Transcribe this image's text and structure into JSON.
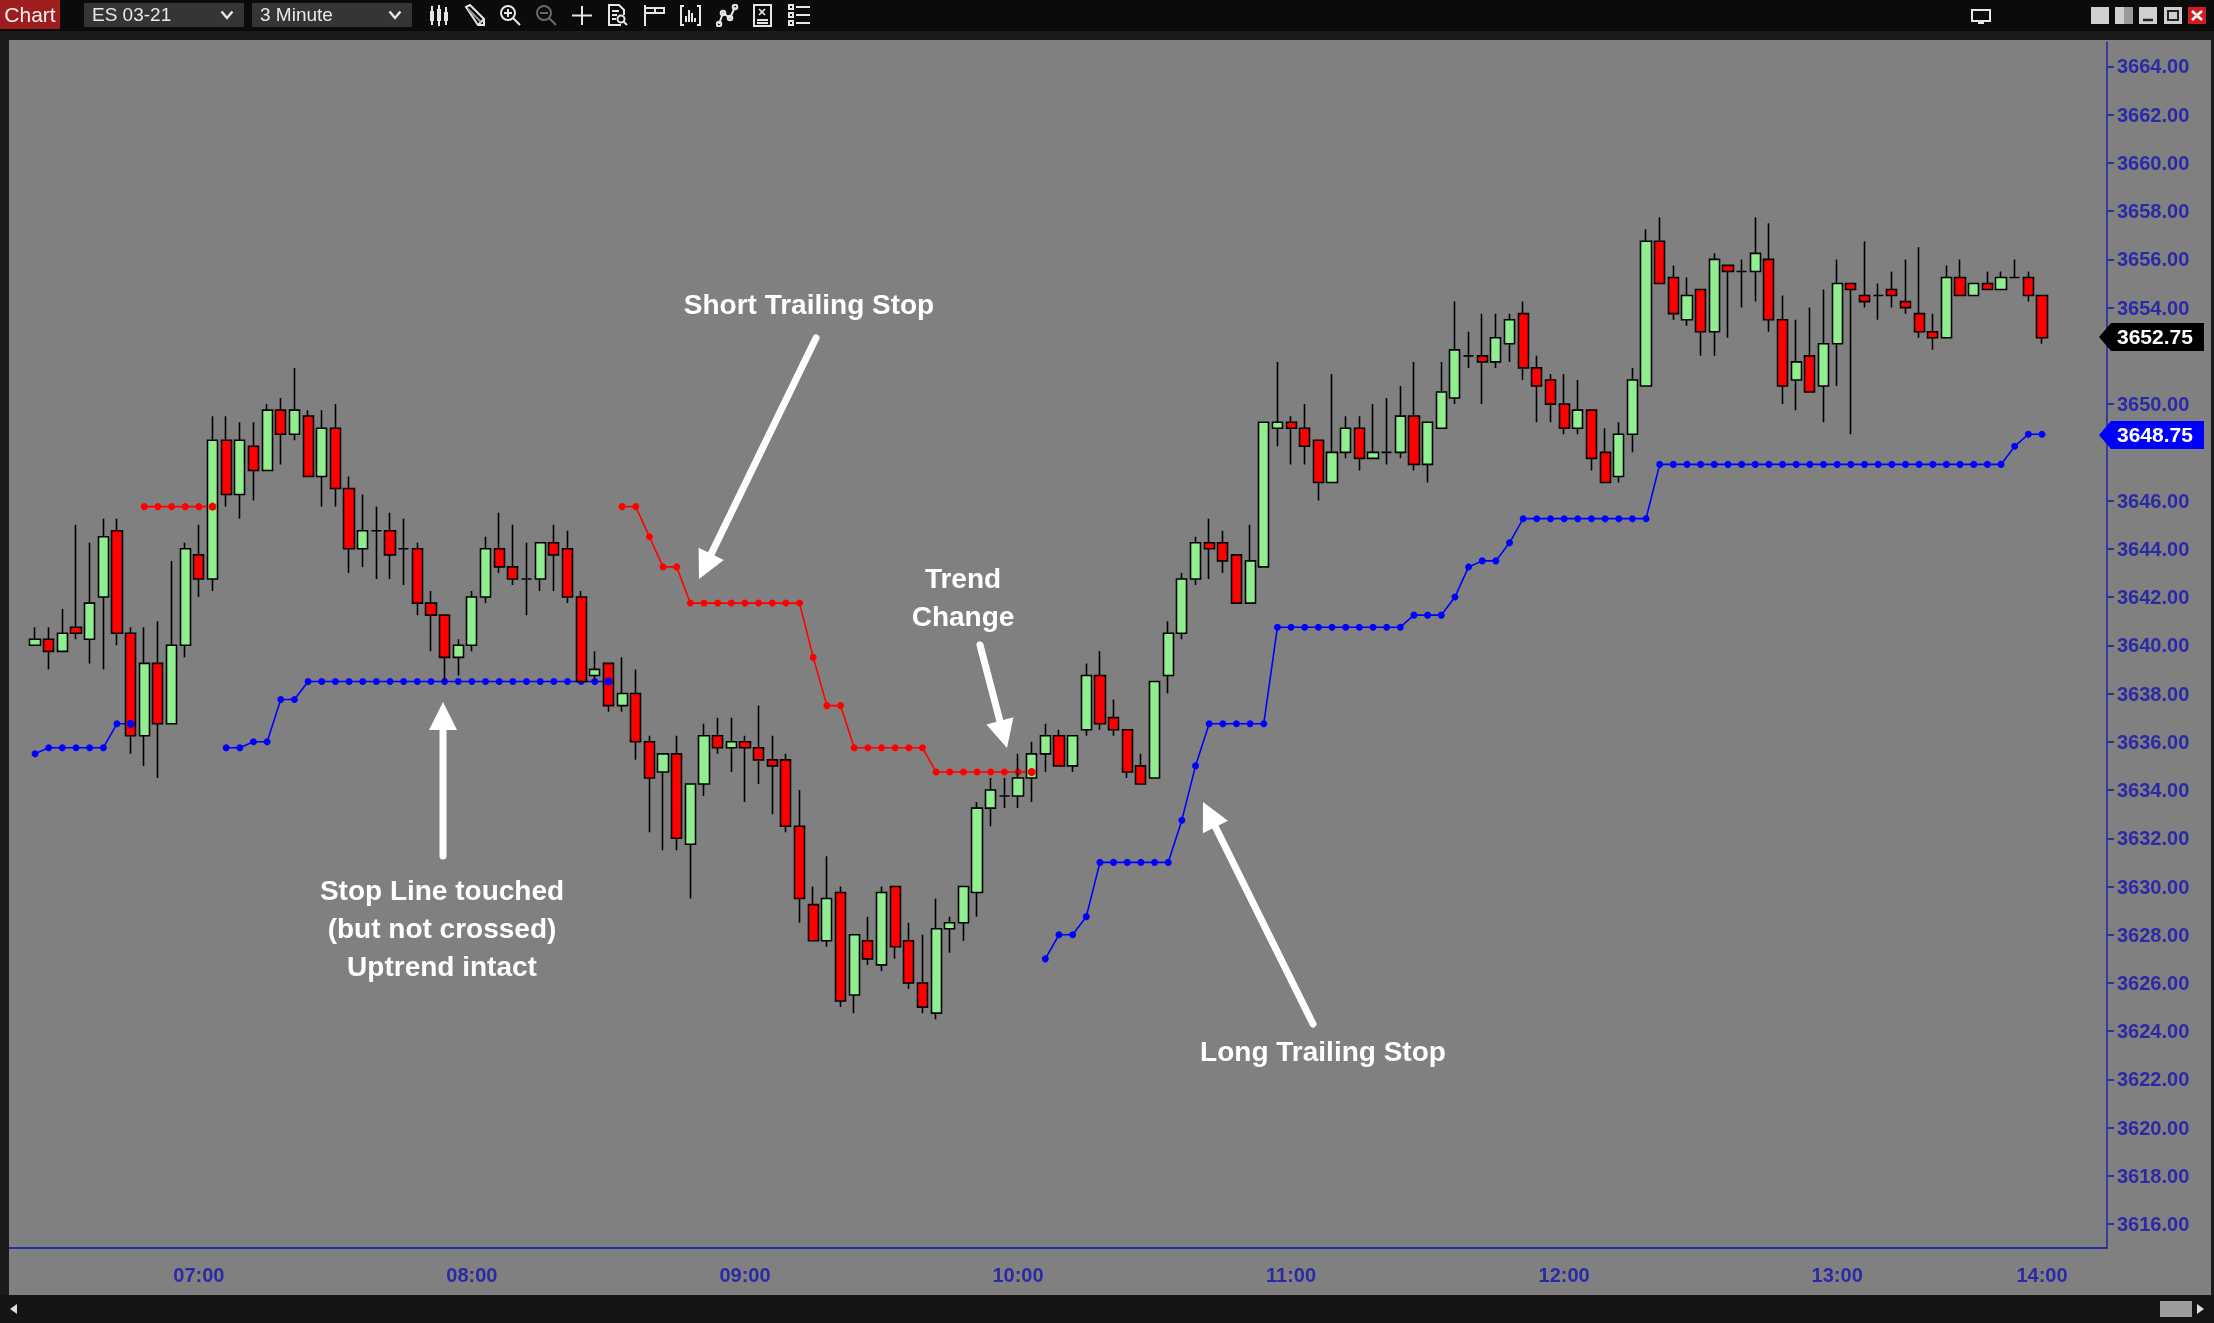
{
  "chart_data": {
    "type": "candlestick",
    "title": "ES 03-21",
    "subtitle": "3 Minute",
    "categories": [
      null,
      null,
      null,
      null,
      null,
      null,
      null,
      null,
      null,
      null,
      null,
      null,
      "07:00",
      null,
      null,
      null,
      null,
      null,
      null,
      null,
      null,
      null,
      null,
      null,
      null,
      null,
      null,
      null,
      null,
      null,
      null,
      null,
      "08:00",
      null,
      null,
      null,
      null,
      null,
      null,
      null,
      null,
      null,
      null,
      null,
      null,
      null,
      null,
      null,
      null,
      null,
      null,
      null,
      "09:00",
      null,
      null,
      null,
      null,
      null,
      null,
      null,
      null,
      null,
      null,
      null,
      null,
      null,
      null,
      null,
      null,
      null,
      null,
      null,
      "10:00",
      null,
      null,
      null,
      null,
      null,
      null,
      null,
      null,
      null,
      null,
      null,
      null,
      null,
      null,
      null,
      null,
      null,
      null,
      null,
      "11:00",
      null,
      null,
      null,
      null,
      null,
      null,
      null,
      null,
      null,
      null,
      null,
      null,
      null,
      null,
      null,
      null,
      null,
      null,
      null,
      "12:00",
      null,
      null,
      null,
      null,
      null,
      null,
      null,
      null,
      null,
      null,
      null,
      null,
      null,
      null,
      null,
      null,
      null,
      null,
      null,
      "13:00",
      null,
      null,
      null,
      null,
      null,
      null,
      null,
      null,
      null,
      null,
      null,
      null,
      null,
      null,
      "14:00"
    ],
    "ohlc": [
      [
        3640.0,
        3640.75,
        3640.0,
        3640.25
      ],
      [
        3640.25,
        3640.75,
        3639.0,
        3639.75
      ],
      [
        3639.75,
        3641.5,
        3639.75,
        3640.5
      ],
      [
        3640.75,
        3645.0,
        3640.25,
        3640.5
      ],
      [
        3640.25,
        3644.25,
        3639.25,
        3641.75
      ],
      [
        3642.0,
        3645.25,
        3639.0,
        3644.5
      ],
      [
        3644.75,
        3645.25,
        3640.0,
        3640.5
      ],
      [
        3640.5,
        3640.75,
        3635.5,
        3636.25
      ],
      [
        3636.25,
        3640.75,
        3635.0,
        3639.25
      ],
      [
        3639.25,
        3641.0,
        3634.5,
        3636.75
      ],
      [
        3636.75,
        3643.5,
        3636.75,
        3640.0
      ],
      [
        3640.0,
        3644.25,
        3639.5,
        3644.0
      ],
      [
        3643.75,
        3645.0,
        3642.0,
        3642.75
      ],
      [
        3642.75,
        3649.5,
        3642.25,
        3648.5
      ],
      [
        3648.5,
        3649.5,
        3645.75,
        3646.25
      ],
      [
        3646.25,
        3649.25,
        3645.25,
        3648.5
      ],
      [
        3648.25,
        3649.25,
        3646.0,
        3647.25
      ],
      [
        3647.25,
        3650.0,
        3647.25,
        3649.75
      ],
      [
        3649.75,
        3650.25,
        3647.5,
        3648.75
      ],
      [
        3648.75,
        3651.5,
        3648.5,
        3649.75
      ],
      [
        3649.5,
        3649.75,
        3647.0,
        3647.0
      ],
      [
        3647.0,
        3649.75,
        3645.75,
        3649.0
      ],
      [
        3649.0,
        3650.0,
        3645.75,
        3646.5
      ],
      [
        3646.5,
        3647.0,
        3643.0,
        3644.0
      ],
      [
        3644.0,
        3646.25,
        3643.25,
        3644.75
      ],
      [
        3644.75,
        3645.75,
        3642.75,
        3644.75
      ],
      [
        3644.75,
        3645.5,
        3642.75,
        3643.75
      ],
      [
        3644.0,
        3645.25,
        3642.5,
        3644.0
      ],
      [
        3644.0,
        3644.25,
        3641.25,
        3641.75
      ],
      [
        3641.75,
        3642.25,
        3639.75,
        3641.25
      ],
      [
        3641.25,
        3641.25,
        3638.5,
        3639.5
      ],
      [
        3639.5,
        3640.25,
        3638.75,
        3640.0
      ],
      [
        3640.0,
        3642.25,
        3639.75,
        3642.0
      ],
      [
        3642.0,
        3644.5,
        3641.75,
        3644.0
      ],
      [
        3644.0,
        3645.5,
        3643.0,
        3643.25
      ],
      [
        3643.25,
        3645.0,
        3642.5,
        3642.75
      ],
      [
        3642.75,
        3644.25,
        3641.25,
        3642.75
      ],
      [
        3642.75,
        3644.25,
        3642.25,
        3644.25
      ],
      [
        3644.25,
        3645.0,
        3642.25,
        3643.75
      ],
      [
        3644.0,
        3644.75,
        3641.75,
        3642.0
      ],
      [
        3642.0,
        3642.25,
        3638.5,
        3638.5
      ],
      [
        3638.75,
        3639.75,
        3638.5,
        3639.0
      ],
      [
        3639.25,
        3639.25,
        3637.25,
        3637.5
      ],
      [
        3637.5,
        3639.5,
        3637.25,
        3638.0
      ],
      [
        3638.0,
        3639.0,
        3635.25,
        3636.0
      ],
      [
        3636.0,
        3636.25,
        3632.25,
        3634.5
      ],
      [
        3634.75,
        3635.5,
        3631.5,
        3635.5
      ],
      [
        3635.5,
        3636.25,
        3631.5,
        3632.0
      ],
      [
        3631.75,
        3634.25,
        3629.5,
        3634.25
      ],
      [
        3634.25,
        3636.75,
        3633.75,
        3636.25
      ],
      [
        3636.25,
        3637.0,
        3635.5,
        3635.75
      ],
      [
        3635.75,
        3637.0,
        3634.75,
        3636.0
      ],
      [
        3636.0,
        3636.25,
        3633.5,
        3635.75
      ],
      [
        3635.75,
        3637.5,
        3634.25,
        3635.25
      ],
      [
        3635.25,
        3636.25,
        3633.0,
        3635.0
      ],
      [
        3635.25,
        3635.5,
        3632.25,
        3632.5
      ],
      [
        3632.5,
        3634.0,
        3628.5,
        3629.5
      ],
      [
        3629.25,
        3630.0,
        3627.75,
        3627.75
      ],
      [
        3627.75,
        3631.25,
        3627.5,
        3629.5
      ],
      [
        3629.75,
        3630.0,
        3625.0,
        3625.25
      ],
      [
        3625.5,
        3628.0,
        3624.75,
        3628.0
      ],
      [
        3627.75,
        3628.75,
        3626.75,
        3627.0
      ],
      [
        3626.75,
        3630.0,
        3626.5,
        3629.75
      ],
      [
        3630.0,
        3630.0,
        3627.0,
        3627.5
      ],
      [
        3627.75,
        3628.5,
        3625.75,
        3626.0
      ],
      [
        3626.0,
        3628.0,
        3624.75,
        3625.0
      ],
      [
        3624.75,
        3629.5,
        3624.5,
        3628.25
      ],
      [
        3628.25,
        3628.75,
        3627.25,
        3628.5
      ],
      [
        3628.5,
        3630.0,
        3627.75,
        3630.0
      ],
      [
        3629.75,
        3633.5,
        3628.75,
        3633.25
      ],
      [
        3633.25,
        3634.5,
        3632.5,
        3634.0
      ],
      [
        3633.75,
        3634.5,
        3633.25,
        3633.75
      ],
      [
        3633.75,
        3635.5,
        3633.25,
        3634.5
      ],
      [
        3634.5,
        3636.0,
        3633.5,
        3635.5
      ],
      [
        3635.5,
        3636.75,
        3634.75,
        3636.25
      ],
      [
        3636.25,
        3636.5,
        3635.0,
        3635.0
      ],
      [
        3635.0,
        3636.25,
        3634.75,
        3636.25
      ],
      [
        3636.5,
        3639.25,
        3636.25,
        3638.75
      ],
      [
        3638.75,
        3639.75,
        3636.5,
        3636.75
      ],
      [
        3637.0,
        3637.75,
        3636.25,
        3636.5
      ],
      [
        3636.5,
        3636.5,
        3634.5,
        3634.75
      ],
      [
        3635.0,
        3635.5,
        3634.25,
        3634.25
      ],
      [
        3634.5,
        3638.5,
        3634.5,
        3638.5
      ],
      [
        3638.75,
        3641.0,
        3638.0,
        3640.5
      ],
      [
        3640.5,
        3643.0,
        3640.25,
        3642.75
      ],
      [
        3642.75,
        3644.5,
        3642.5,
        3644.25
      ],
      [
        3644.25,
        3645.25,
        3642.75,
        3644.0
      ],
      [
        3644.25,
        3644.75,
        3643.0,
        3643.5
      ],
      [
        3643.75,
        3643.75,
        3641.75,
        3641.75
      ],
      [
        3641.75,
        3645.0,
        3641.75,
        3643.5
      ],
      [
        3643.25,
        3649.25,
        3643.25,
        3649.25
      ],
      [
        3649.0,
        3651.75,
        3648.25,
        3649.25
      ],
      [
        3649.25,
        3649.5,
        3647.5,
        3649.0
      ],
      [
        3649.0,
        3650.0,
        3647.5,
        3648.25
      ],
      [
        3648.5,
        3648.5,
        3646.0,
        3646.75
      ],
      [
        3646.75,
        3651.25,
        3646.75,
        3648.0
      ],
      [
        3648.0,
        3649.5,
        3647.75,
        3649.0
      ],
      [
        3649.0,
        3649.5,
        3647.25,
        3647.75
      ],
      [
        3647.75,
        3650.0,
        3647.75,
        3648.0
      ],
      [
        3648.0,
        3650.25,
        3647.5,
        3648.0
      ],
      [
        3648.0,
        3650.75,
        3647.75,
        3649.5
      ],
      [
        3649.5,
        3651.75,
        3647.25,
        3647.5
      ],
      [
        3647.5,
        3649.25,
        3646.75,
        3649.25
      ],
      [
        3649.0,
        3651.75,
        3649.0,
        3650.5
      ],
      [
        3650.25,
        3654.25,
        3650.0,
        3652.25
      ],
      [
        3652.0,
        3653.0,
        3651.5,
        3652.0
      ],
      [
        3652.0,
        3653.75,
        3650.0,
        3651.75
      ],
      [
        3651.75,
        3653.75,
        3651.5,
        3652.75
      ],
      [
        3652.5,
        3653.75,
        3651.75,
        3653.5
      ],
      [
        3653.75,
        3654.25,
        3651.0,
        3651.5
      ],
      [
        3651.5,
        3652.0,
        3649.25,
        3650.75
      ],
      [
        3651.0,
        3651.25,
        3649.25,
        3650.0
      ],
      [
        3650.0,
        3651.25,
        3648.75,
        3649.0
      ],
      [
        3649.0,
        3651.0,
        3648.75,
        3649.75
      ],
      [
        3649.75,
        3649.75,
        3647.25,
        3647.75
      ],
      [
        3648.0,
        3649.0,
        3646.75,
        3646.75
      ],
      [
        3647.0,
        3649.25,
        3646.75,
        3648.75
      ],
      [
        3648.75,
        3651.5,
        3648.0,
        3651.0
      ],
      [
        3650.75,
        3657.25,
        3650.75,
        3656.75
      ],
      [
        3656.75,
        3657.75,
        3655.0,
        3655.0
      ],
      [
        3655.25,
        3655.75,
        3653.5,
        3653.75
      ],
      [
        3653.5,
        3655.25,
        3653.25,
        3654.5
      ],
      [
        3654.75,
        3654.75,
        3652.0,
        3653.0
      ],
      [
        3653.0,
        3656.25,
        3652.0,
        3656.0
      ],
      [
        3655.75,
        3655.75,
        3652.75,
        3655.5
      ],
      [
        3655.5,
        3656.0,
        3654.0,
        3655.5
      ],
      [
        3655.5,
        3657.75,
        3654.25,
        3656.25
      ],
      [
        3656.0,
        3657.5,
        3653.0,
        3653.5
      ],
      [
        3653.5,
        3654.5,
        3650.0,
        3650.75
      ],
      [
        3651.0,
        3653.5,
        3649.75,
        3651.75
      ],
      [
        3652.0,
        3654.0,
        3650.5,
        3650.5
      ],
      [
        3650.75,
        3654.75,
        3649.25,
        3652.5
      ],
      [
        3652.5,
        3656.0,
        3650.75,
        3655.0
      ],
      [
        3655.0,
        3655.0,
        3648.75,
        3654.75
      ],
      [
        3654.5,
        3656.75,
        3654.0,
        3654.25
      ],
      [
        3654.5,
        3655.0,
        3653.5,
        3654.5
      ],
      [
        3654.75,
        3655.5,
        3654.0,
        3654.5
      ],
      [
        3654.25,
        3656.0,
        3653.75,
        3654.0
      ],
      [
        3653.75,
        3656.5,
        3652.75,
        3653.0
      ],
      [
        3653.0,
        3653.75,
        3652.25,
        3652.75
      ],
      [
        3652.75,
        3655.75,
        3652.75,
        3655.25
      ],
      [
        3655.25,
        3656.0,
        3654.5,
        3654.5
      ],
      [
        3654.5,
        3655.0,
        3654.5,
        3655.0
      ],
      [
        3655.0,
        3655.5,
        3654.75,
        3654.75
      ],
      [
        3654.75,
        3655.5,
        3654.75,
        3655.25
      ],
      [
        3655.25,
        3656.0,
        3655.25,
        3655.25
      ],
      [
        3655.25,
        3655.5,
        3654.25,
        3654.5
      ],
      [
        3654.5,
        3654.5,
        3652.5,
        3652.75
      ]
    ],
    "colors": [
      "#90ee90",
      "#ff0000",
      "#90ee90",
      "#ff0000",
      "#90ee90",
      "#90ee90",
      "#ff0000",
      "#ff0000",
      "#90ee90",
      "#ff0000",
      "#90ee90",
      "#90ee90",
      "#ff0000",
      "#90ee90",
      "#ff0000",
      "#90ee90",
      "#ff0000",
      "#90ee90",
      "#ff0000",
      "#90ee90",
      "#ff0000",
      "#90ee90",
      "#ff0000",
      "#ff0000",
      "#90ee90",
      "#000000",
      "#ff0000",
      "#000000",
      "#ff0000",
      "#ff0000",
      "#ff0000",
      "#90ee90",
      "#90ee90",
      "#90ee90",
      "#ff0000",
      "#ff0000",
      "#000000",
      "#90ee90",
      "#ff0000",
      "#ff0000",
      "#ff0000",
      "#90ee90",
      "#ff0000",
      "#90ee90",
      "#ff0000",
      "#ff0000",
      "#90ee90",
      "#ff0000",
      "#90ee90",
      "#90ee90",
      "#ff0000",
      "#90ee90",
      "#ff0000",
      "#ff0000",
      "#ff0000",
      "#ff0000",
      "#ff0000",
      "#ff0000",
      "#90ee90",
      "#ff0000",
      "#90ee90",
      "#ff0000",
      "#90ee90",
      "#ff0000",
      "#ff0000",
      "#ff0000",
      "#90ee90",
      "#90ee90",
      "#90ee90",
      "#90ee90",
      "#90ee90",
      "#000000",
      "#90ee90",
      "#90ee90",
      "#90ee90",
      "#ff0000",
      "#90ee90",
      "#90ee90",
      "#ff0000",
      "#ff0000",
      "#ff0000",
      "#ff0000",
      "#90ee90",
      "#90ee90",
      "#90ee90",
      "#90ee90",
      "#ff0000",
      "#ff0000",
      "#ff0000",
      "#90ee90",
      "#90ee90",
      "#90ee90",
      "#ff0000",
      "#ff0000",
      "#ff0000",
      "#90ee90",
      "#90ee90",
      "#ff0000",
      "#90ee90",
      "#000000",
      "#90ee90",
      "#ff0000",
      "#90ee90",
      "#90ee90",
      "#90ee90",
      "#000000",
      "#ff0000",
      "#90ee90",
      "#90ee90",
      "#ff0000",
      "#ff0000",
      "#ff0000",
      "#ff0000",
      "#90ee90",
      "#ff0000",
      "#ff0000",
      "#90ee90",
      "#90ee90",
      "#90ee90",
      "#ff0000",
      "#ff0000",
      "#90ee90",
      "#ff0000",
      "#90ee90",
      "#ff0000",
      "#000000",
      "#90ee90",
      "#ff0000",
      "#ff0000",
      "#90ee90",
      "#ff0000",
      "#90ee90",
      "#90ee90",
      "#ff0000",
      "#ff0000",
      "#000000",
      "#ff0000",
      "#ff0000",
      "#ff0000",
      "#ff0000",
      "#90ee90",
      "#ff0000",
      "#90ee90",
      "#ff0000",
      "#90ee90",
      "#000000",
      "#ff0000",
      "#ff0000"
    ],
    "series": [
      {
        "type": "line",
        "color": "#ff0000",
        "values": [
          null,
          null,
          null,
          null,
          null,
          null,
          null,
          null,
          3645.75,
          3645.75,
          3645.75,
          3645.75,
          3645.75,
          3645.75,
          null,
          null,
          null,
          null,
          null,
          null,
          null,
          null,
          null,
          null,
          null,
          null,
          null,
          null,
          null,
          null,
          null,
          null,
          null,
          null,
          null,
          null,
          null,
          null,
          null,
          null,
          null,
          null,
          null,
          3645.75,
          3645.75,
          3644.5,
          3643.25,
          3643.25,
          3641.75,
          3641.75,
          3641.75,
          3641.75,
          3641.75,
          3641.75,
          3641.75,
          3641.75,
          3641.75,
          3639.5,
          3637.5,
          3637.5,
          3635.75,
          3635.75,
          3635.75,
          3635.75,
          3635.75,
          3635.75,
          3634.75,
          3634.75,
          3634.75,
          3634.75,
          3634.75,
          3634.75,
          3634.75,
          3634.75,
          null,
          null,
          null,
          null,
          null,
          null,
          null,
          null,
          null,
          null,
          null,
          null,
          null,
          null,
          null,
          null,
          null,
          null,
          null,
          null,
          null,
          null,
          null,
          null,
          null,
          null,
          null,
          null,
          null,
          null,
          null,
          null,
          null,
          null,
          null,
          null,
          null,
          null,
          null,
          null,
          null,
          null,
          null,
          null,
          null,
          null,
          null,
          null,
          null,
          null,
          null,
          null,
          null,
          null,
          null,
          null,
          null,
          null,
          null,
          null,
          null,
          null,
          null,
          null,
          null,
          null,
          null,
          null,
          null,
          null,
          null,
          null,
          null,
          null
        ]
      },
      {
        "type": "line",
        "color": "#0000ff",
        "values": [
          3635.5,
          3635.75,
          3635.75,
          3635.75,
          3635.75,
          3635.75,
          3636.75,
          3636.75,
          null,
          null,
          null,
          null,
          null,
          null,
          3635.75,
          3635.75,
          3636.0,
          3636.0,
          3637.75,
          3637.75,
          3638.5,
          3638.5,
          3638.5,
          3638.5,
          3638.5,
          3638.5,
          3638.5,
          3638.5,
          3638.5,
          3638.5,
          3638.5,
          3638.5,
          3638.5,
          3638.5,
          3638.5,
          3638.5,
          3638.5,
          3638.5,
          3638.5,
          3638.5,
          3638.5,
          3638.5,
          3638.5,
          null,
          null,
          null,
          null,
          null,
          null,
          null,
          null,
          null,
          null,
          null,
          null,
          null,
          null,
          null,
          null,
          null,
          null,
          null,
          null,
          null,
          null,
          null,
          null,
          null,
          null,
          null,
          null,
          null,
          null,
          null,
          3627.0,
          3628.0,
          3628.0,
          3628.75,
          3631.0,
          3631.0,
          3631.0,
          3631.0,
          3631.0,
          3631.0,
          3632.75,
          3635.0,
          3636.75,
          3636.75,
          3636.75,
          3636.75,
          3636.75,
          3640.75,
          3640.75,
          3640.75,
          3640.75,
          3640.75,
          3640.75,
          3640.75,
          3640.75,
          3640.75,
          3640.75,
          3641.25,
          3641.25,
          3641.25,
          3642.0,
          3643.25,
          3643.5,
          3643.5,
          3644.25,
          3645.25,
          3645.25,
          3645.25,
          3645.25,
          3645.25,
          3645.25,
          3645.25,
          3645.25,
          3645.25,
          3645.25,
          3647.5,
          3647.5,
          3647.5,
          3647.5,
          3647.5,
          3647.5,
          3647.5,
          3647.5,
          3647.5,
          3647.5,
          3647.5,
          3647.5,
          3647.5,
          3647.5,
          3647.5,
          3647.5,
          3647.5,
          3647.5,
          3647.5,
          3647.5,
          3647.5,
          3647.5,
          3647.5,
          3647.5,
          3647.5,
          3647.5,
          3648.25,
          3648.75,
          3648.75
        ]
      }
    ],
    "marker": "circle",
    "line_style": "solid",
    "ylim": [
      3615,
      3665
    ],
    "yticks": [
      {
        "value": 3616,
        "label": "3616.00"
      },
      {
        "value": 3618,
        "label": "3618.00"
      },
      {
        "value": 3620,
        "label": "3620.00"
      },
      {
        "value": 3622,
        "label": "3622.00"
      },
      {
        "value": 3624,
        "label": "3624.00"
      },
      {
        "value": 3626,
        "label": "3626.00"
      },
      {
        "value": 3628,
        "label": "3628.00"
      },
      {
        "value": 3630,
        "label": "3630.00"
      },
      {
        "value": 3632,
        "label": "3632.00"
      },
      {
        "value": 3634,
        "label": "3634.00"
      },
      {
        "value": 3636,
        "label": "3636.00"
      },
      {
        "value": 3638,
        "label": "3638.00"
      },
      {
        "value": 3640,
        "label": "3640.00"
      },
      {
        "value": 3642,
        "label": "3642.00"
      },
      {
        "value": 3644,
        "label": "3644.00"
      },
      {
        "value": 3646,
        "label": "3646.00"
      },
      {
        "value": 3650,
        "label": "3650.00"
      },
      {
        "value": 3654,
        "label": "3654.00"
      },
      {
        "value": 3656,
        "label": "3656.00"
      },
      {
        "value": 3658,
        "label": "3658.00"
      },
      {
        "value": 3660,
        "label": "3660.00"
      },
      {
        "value": 3662,
        "label": "3662.00"
      },
      {
        "value": 3664,
        "label": "3664.00"
      }
    ],
    "grid": false,
    "annotations": [
      "Chart",
      "Short Trailing Stop",
      "Trend\nChange",
      "Stop Line touched\n(but not crossed)\nUptrend intact",
      "Long Trailing Stop",
      "3652.75",
      "3648.75"
    ]
  }
}
